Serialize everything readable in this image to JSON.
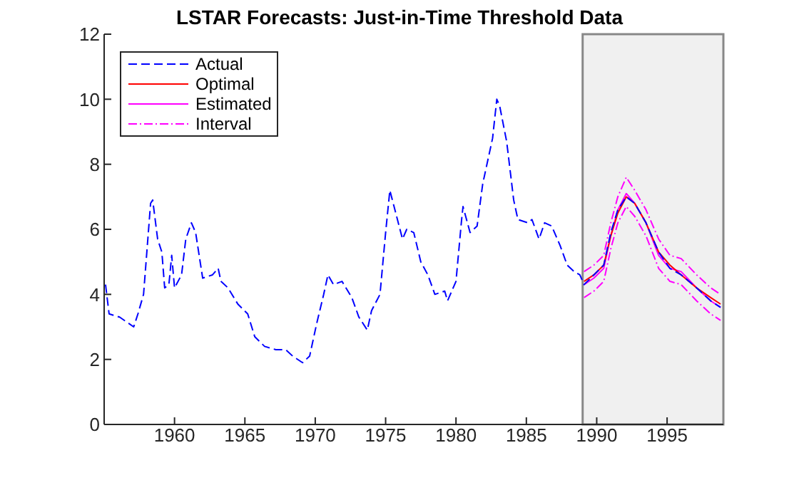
{
  "chart_data": {
    "type": "line",
    "title": "LSTAR Forecasts: Just-in-Time Threshold Data",
    "xlim": [
      1955,
      1999
    ],
    "xticks": [
      1960,
      1965,
      1970,
      1975,
      1980,
      1985,
      1990,
      1995
    ],
    "ylim": [
      0,
      12
    ],
    "yticks": [
      0,
      2,
      4,
      6,
      8,
      10,
      12
    ],
    "legend": "top left",
    "bands": [
      {
        "axis": "x",
        "from": 1989,
        "to": 1999,
        "color": "#f0f0f0"
      }
    ],
    "series": [
      {
        "name": "Actual",
        "color": "#0000ff",
        "line_style": "dashed",
        "x": [
          1955.1,
          1955.35,
          1956.1,
          1957.1,
          1957.4,
          1957.8,
          1958.3,
          1958.45,
          1958.8,
          1959.1,
          1959.3,
          1959.6,
          1959.8,
          1960.0,
          1960.5,
          1960.8,
          1961.2,
          1961.5,
          1962.0,
          1962.7,
          1963.1,
          1963.3,
          1963.8,
          1964.5,
          1965.2,
          1965.7,
          1966.4,
          1967.2,
          1967.9,
          1968.4,
          1969.1,
          1969.6,
          1970.1,
          1970.6,
          1970.9,
          1971.3,
          1971.9,
          1972.6,
          1973.1,
          1973.7,
          1974.0,
          1974.6,
          1975.0,
          1975.3,
          1975.6,
          1976.2,
          1976.5,
          1977.0,
          1977.5,
          1978.0,
          1978.5,
          1979.2,
          1979.4,
          1980.0,
          1980.4,
          1980.5,
          1981.0,
          1981.5,
          1981.9,
          1982.6,
          1982.9,
          1983.1,
          1983.6,
          1984.1,
          1984.4,
          1985.1,
          1985.4,
          1985.9,
          1986.3,
          1986.8,
          1987.4,
          1987.9,
          1988.4,
          1988.8,
          1989.1,
          1989.8,
          1990.5,
          1991.0,
          1991.5,
          1992.1,
          1992.7,
          1993.5,
          1994.4,
          1995.2,
          1996.0,
          1997.1,
          1998.1,
          1998.8
        ],
        "values": [
          4.3,
          3.4,
          3.3,
          3.0,
          3.4,
          4.0,
          6.8,
          6.9,
          5.7,
          5.3,
          4.2,
          4.3,
          5.2,
          4.2,
          4.6,
          5.7,
          6.2,
          5.9,
          4.5,
          4.6,
          4.8,
          4.4,
          4.2,
          3.7,
          3.4,
          2.7,
          2.4,
          2.3,
          2.3,
          2.1,
          1.9,
          2.1,
          3.1,
          4.0,
          4.6,
          4.3,
          4.4,
          3.9,
          3.3,
          2.9,
          3.5,
          4.0,
          5.9,
          7.2,
          6.7,
          5.7,
          6.0,
          5.9,
          5.0,
          4.6,
          4.0,
          4.1,
          3.8,
          4.4,
          6.3,
          6.7,
          5.9,
          6.1,
          7.4,
          8.8,
          10.0,
          9.8,
          8.7,
          6.9,
          6.3,
          6.2,
          6.3,
          5.7,
          6.2,
          6.1,
          5.5,
          4.9,
          4.7,
          4.6,
          4.3,
          4.6,
          4.9,
          5.9,
          6.6,
          7.0,
          6.8,
          6.2,
          5.3,
          4.8,
          4.6,
          4.2,
          3.8,
          3.6
        ]
      },
      {
        "name": "Optimal",
        "color": "#ff0000",
        "line_style": "solid",
        "x": [
          1989.1,
          1989.8,
          1990.5,
          1991.0,
          1991.5,
          1992.1,
          1992.7,
          1993.5,
          1994.4,
          1995.2,
          1996.0,
          1997.1,
          1998.1,
          1998.8
        ],
        "values": [
          4.4,
          4.6,
          4.9,
          5.8,
          6.5,
          7.0,
          6.8,
          6.2,
          5.3,
          4.9,
          4.6,
          4.2,
          3.9,
          3.7
        ]
      },
      {
        "name": "Estimated",
        "color": "#ff00ff",
        "line_style": "solid",
        "x": [
          1989.1,
          1989.8,
          1990.5,
          1991.0,
          1991.5,
          1992.1,
          1992.7,
          1993.5,
          1994.4,
          1995.2,
          1996.0,
          1997.1,
          1998.1,
          1998.8
        ],
        "values": [
          4.3,
          4.5,
          4.8,
          5.8,
          6.6,
          7.1,
          6.8,
          6.2,
          5.2,
          4.8,
          4.7,
          4.2,
          3.8,
          3.6
        ]
      },
      {
        "name": "Interval",
        "color": "#ff00ff",
        "line_style": "dashed",
        "x": [
          1989.1,
          1989.8,
          1990.5,
          1991.0,
          1991.5,
          1992.1,
          1992.7,
          1993.5,
          1994.4,
          1995.2,
          1996.0,
          1997.1,
          1998.1,
          1998.8
        ],
        "values": [
          4.7,
          4.9,
          5.2,
          6.2,
          7.0,
          7.6,
          7.2,
          6.6,
          5.7,
          5.2,
          5.1,
          4.6,
          4.2,
          4.0
        ]
      },
      {
        "color": "#ff00ff",
        "line_style": "dotted",
        "x": [
          1989.1,
          1989.8,
          1990.5,
          1991.0,
          1991.5,
          1992.1,
          1992.7,
          1993.5,
          1994.4,
          1995.2,
          1996.0,
          1997.1,
          1998.1,
          1998.8
        ],
        "values": [
          3.9,
          4.1,
          4.4,
          5.4,
          6.2,
          6.7,
          6.4,
          5.8,
          4.8,
          4.4,
          4.3,
          3.8,
          3.4,
          3.2
        ]
      }
    ]
  }
}
